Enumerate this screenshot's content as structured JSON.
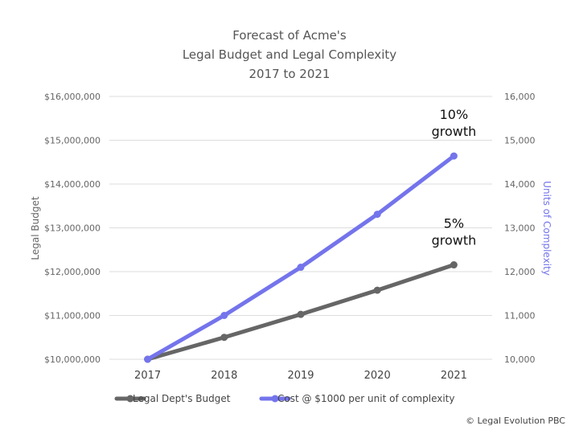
{
  "colors": {
    "budget": "#666666",
    "complexity": "#7474ec",
    "grid": "#dddddd",
    "right_axis_label": "#7474ec"
  },
  "copyright": "© Legal Evolution PBC",
  "chart_data": {
    "type": "line",
    "title_lines": [
      "Forecast of Acme's",
      "Legal Budget and Legal Complexity",
      "2017 to 2021"
    ],
    "categories": [
      "2017",
      "2018",
      "2019",
      "2020",
      "2021"
    ],
    "ylabel": "Legal Budget",
    "y2label": "Units of Complexity",
    "ylim": [
      10000000,
      16000000
    ],
    "y2lim": [
      10000,
      16000
    ],
    "y_ticks": [
      "$10,000,000",
      "$11,000,000",
      "$12,000,000",
      "$13,000,000",
      "$14,000,000",
      "$15,000,000",
      "$16,000,000"
    ],
    "y2_ticks": [
      "10,000",
      "11,000",
      "12,000",
      "13,000",
      "14,000",
      "15,000",
      "16,000"
    ],
    "grid": true,
    "legend_position": "bottom-left",
    "series": [
      {
        "name": "Legal Dept's Budget",
        "axis": "left",
        "color": "#666666",
        "values": [
          10000000,
          10500000,
          11025000,
          11576250,
          12155063
        ]
      },
      {
        "name": "Cost @ $1000 per unit of complexity",
        "axis": "left",
        "color": "#7474ec",
        "values": [
          10000000,
          11000000,
          12100000,
          13310000,
          14641000
        ]
      }
    ],
    "annotations": [
      {
        "lines": [
          "10%",
          "growth"
        ],
        "series": 1
      },
      {
        "lines": [
          "5%",
          "growth"
        ],
        "series": 0
      }
    ]
  }
}
